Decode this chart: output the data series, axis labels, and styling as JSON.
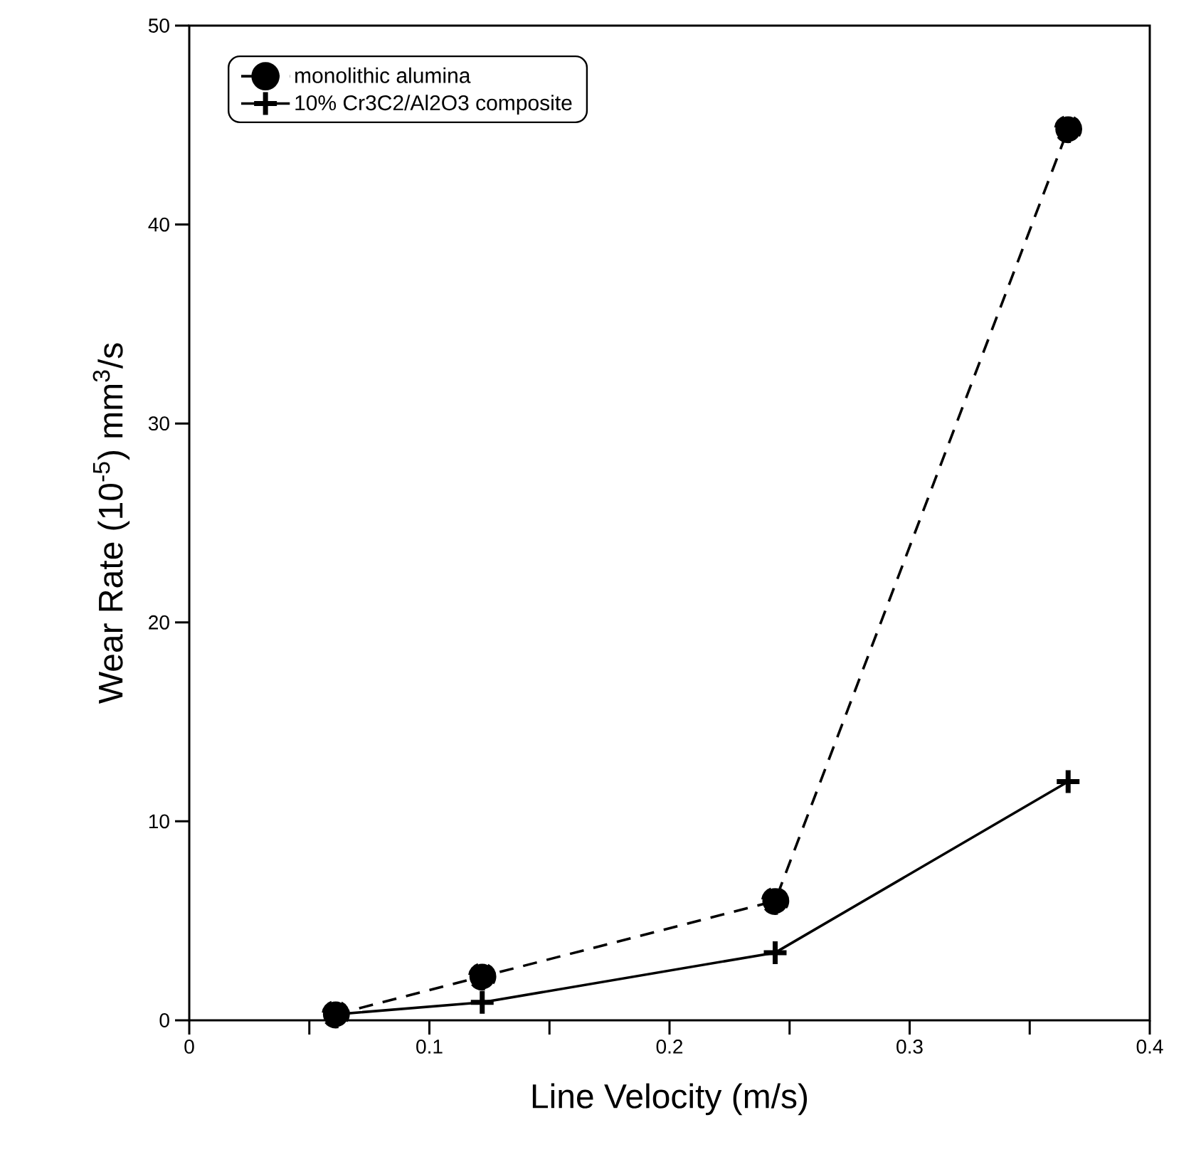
{
  "chart_data": {
    "type": "line",
    "xlabel": "Line Velocity (m/s)",
    "ylabel": "Wear Rate (10$^{-5}$) mm$^{3}$/s",
    "x": [
      0.061,
      0.122,
      0.244,
      0.366
    ],
    "series": [
      {
        "name": "monolithic alumina",
        "color": "#000000",
        "marker": "circle",
        "line_style": "dashed",
        "values": [
          0.3,
          2.2,
          6.0,
          44.8
        ]
      },
      {
        "name": "10% Cr3C2/Al2O3 composite",
        "color": "#000000",
        "marker": "cross",
        "line_style": "solid",
        "values": [
          0.3,
          0.9,
          3.4,
          12.0
        ]
      }
    ],
    "xlim": [
      0,
      0.4
    ],
    "xticks": [
      0,
      {
        "value": 0.05,
        "label": null
      },
      0.1,
      {
        "value": 0.15,
        "label": null
      },
      0.2,
      {
        "value": 0.25,
        "label": null
      },
      0.3,
      {
        "value": 0.35,
        "label": null
      },
      0.4
    ],
    "ylim": [
      0,
      50
    ],
    "yticks": [
      0,
      10,
      20,
      30,
      40,
      50
    ],
    "grid": false,
    "legend": "top left"
  }
}
